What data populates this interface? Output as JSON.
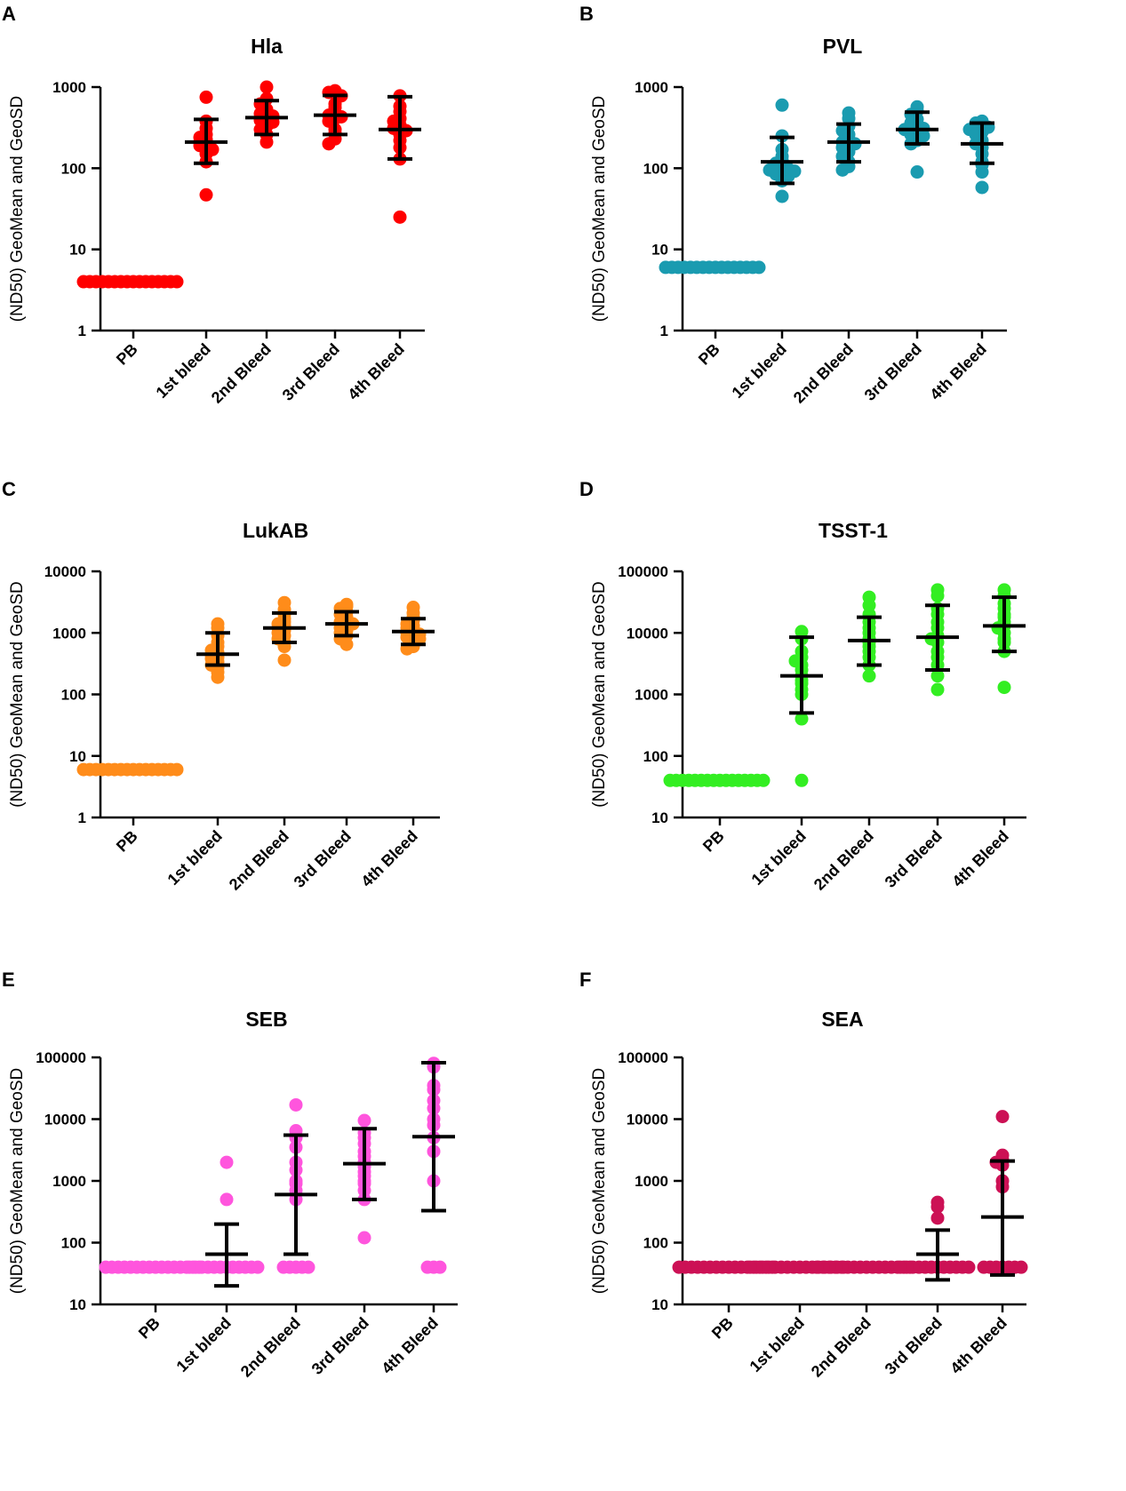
{
  "chart_data": [
    {
      "panel": "A",
      "title": "Hla",
      "type": "scatter",
      "ylabel": "(ND50) GeoMean and GeoSD",
      "yscale": "log",
      "ylim": [
        1,
        1000
      ],
      "yticks": [
        1,
        10,
        100,
        1000
      ],
      "color": "#ff0000",
      "categories": [
        "PB",
        "1st bleed",
        "2nd Bleed",
        "3rd Bleed",
        "4th Bleed"
      ],
      "series": [
        {
          "name": "PB",
          "values": [
            4,
            4,
            4,
            4,
            4,
            4,
            4,
            4,
            4,
            4,
            4,
            4,
            4,
            4,
            4,
            4
          ],
          "geomean": 4,
          "gsd_low": null,
          "gsd_high": null
        },
        {
          "name": "1st bleed",
          "values": [
            750,
            380,
            310,
            260,
            240,
            225,
            210,
            195,
            190,
            170,
            150,
            120,
            47
          ],
          "geomean": 210,
          "gsd_low": 115,
          "gsd_high": 400
        },
        {
          "name": "2nd Bleed",
          "values": [
            1000,
            720,
            620,
            530,
            500,
            470,
            440,
            410,
            390,
            370,
            330,
            300,
            260,
            210
          ],
          "geomean": 420,
          "gsd_low": 260,
          "gsd_high": 680
        },
        {
          "name": "3rd Bleed",
          "values": [
            900,
            860,
            780,
            620,
            560,
            480,
            450,
            430,
            410,
            380,
            300,
            270,
            230,
            200
          ],
          "geomean": 450,
          "gsd_low": 260,
          "gsd_high": 790
        },
        {
          "name": "4th Bleed",
          "values": [
            780,
            580,
            500,
            410,
            380,
            340,
            310,
            290,
            260,
            220,
            180,
            130,
            25
          ],
          "geomean": 300,
          "gsd_low": 130,
          "gsd_high": 760
        }
      ]
    },
    {
      "panel": "B",
      "title": "PVL",
      "type": "scatter",
      "ylabel": "(ND50) GeoMean and GeoSD",
      "yscale": "log",
      "ylim": [
        1,
        1000
      ],
      "yticks": [
        1,
        10,
        100,
        1000
      ],
      "color": "#1a9bb0",
      "categories": [
        "PB",
        "1st bleed",
        "2nd Bleed",
        "3rd Bleed",
        "4th Bleed"
      ],
      "series": [
        {
          "name": "PB",
          "values": [
            6,
            6,
            6,
            6,
            6,
            6,
            6,
            6,
            6,
            6,
            6,
            6,
            6,
            6,
            6,
            6
          ],
          "geomean": 6,
          "gsd_low": null,
          "gsd_high": null
        },
        {
          "name": "1st bleed",
          "values": [
            600,
            250,
            170,
            140,
            125,
            115,
            105,
            100,
            98,
            95,
            92,
            88,
            85,
            80,
            70,
            45
          ],
          "geomean": 120,
          "gsd_low": 65,
          "gsd_high": 240
        },
        {
          "name": "2nd Bleed",
          "values": [
            480,
            410,
            330,
            290,
            260,
            230,
            210,
            200,
            190,
            180,
            160,
            140,
            120,
            105,
            95
          ],
          "geomean": 210,
          "gsd_low": 120,
          "gsd_high": 350
        },
        {
          "name": "3rd Bleed",
          "values": [
            570,
            510,
            460,
            400,
            360,
            340,
            320,
            310,
            300,
            280,
            260,
            250,
            220,
            200,
            90
          ],
          "geomean": 300,
          "gsd_low": 200,
          "gsd_high": 490
        },
        {
          "name": "4th Bleed",
          "values": [
            380,
            360,
            340,
            330,
            320,
            300,
            280,
            260,
            220,
            200,
            180,
            150,
            120,
            110,
            90,
            58
          ],
          "geomean": 200,
          "gsd_low": 115,
          "gsd_high": 360
        }
      ]
    },
    {
      "panel": "C",
      "title": "LukAB",
      "type": "scatter",
      "ylabel": "(ND50) GeoMean and GeoSD",
      "yscale": "log",
      "ylim": [
        1,
        10000
      ],
      "yticks": [
        1,
        10,
        100,
        1000,
        10000
      ],
      "color": "#ff8c1a",
      "categories": [
        "PB",
        "1st bleed",
        "2nd Bleed",
        "3rd Bleed",
        "4th Bleed"
      ],
      "series": [
        {
          "name": "PB",
          "values": [
            6,
            6,
            6,
            6,
            6,
            6,
            6,
            6,
            6,
            6,
            6,
            6,
            6,
            6,
            6,
            6
          ],
          "geomean": 6,
          "gsd_low": null,
          "gsd_high": null
        },
        {
          "name": "1st bleed",
          "values": [
            1400,
            1200,
            900,
            700,
            600,
            520,
            480,
            440,
            400,
            380,
            340,
            300,
            270,
            230,
            190
          ],
          "geomean": 450,
          "gsd_low": 300,
          "gsd_high": 1000
        },
        {
          "name": "2nd Bleed",
          "values": [
            3100,
            2400,
            2000,
            1700,
            1500,
            1400,
            1300,
            1200,
            1100,
            1000,
            900,
            800,
            700,
            600,
            360
          ],
          "geomean": 1200,
          "gsd_low": 700,
          "gsd_high": 2100
        },
        {
          "name": "3rd Bleed",
          "values": [
            2900,
            2700,
            2500,
            2200,
            2000,
            1800,
            1600,
            1500,
            1400,
            1300,
            1200,
            1100,
            1000,
            900,
            800,
            650
          ],
          "geomean": 1400,
          "gsd_low": 900,
          "gsd_high": 2200
        },
        {
          "name": "4th Bleed",
          "values": [
            2600,
            2100,
            1800,
            1600,
            1400,
            1300,
            1200,
            1100,
            1000,
            950,
            900,
            850,
            800,
            700,
            600,
            550
          ],
          "geomean": 1050,
          "gsd_low": 650,
          "gsd_high": 1700
        }
      ]
    },
    {
      "panel": "D",
      "title": "TSST-1",
      "type": "scatter",
      "ylabel": "(ND50) GeoMean and GeoSD",
      "yscale": "log",
      "ylim": [
        10,
        100000
      ],
      "yticks": [
        10,
        100,
        1000,
        10000,
        100000
      ],
      "color": "#33ee22",
      "categories": [
        "PB",
        "1st bleed",
        "2nd Bleed",
        "3rd Bleed",
        "4th Bleed"
      ],
      "series": [
        {
          "name": "PB",
          "values": [
            40,
            40,
            40,
            40,
            40,
            40,
            40,
            40,
            40,
            40,
            40,
            40,
            40,
            40,
            40,
            40
          ],
          "geomean": 40,
          "gsd_low": null,
          "gsd_high": null
        },
        {
          "name": "1st bleed",
          "values": [
            10500,
            8000,
            5000,
            4000,
            3500,
            3000,
            2500,
            2000,
            1700,
            1500,
            1200,
            1000,
            400,
            40
          ],
          "geomean": 2000,
          "gsd_low": 500,
          "gsd_high": 8500
        },
        {
          "name": "2nd Bleed",
          "values": [
            38000,
            28000,
            20000,
            15000,
            12000,
            10000,
            8000,
            7000,
            6000,
            5000,
            4000,
            3000,
            2000
          ],
          "geomean": 7500,
          "gsd_low": 3000,
          "gsd_high": 18000
        },
        {
          "name": "3rd Bleed",
          "values": [
            50000,
            40000,
            25000,
            20000,
            15000,
            12000,
            9000,
            8000,
            7000,
            5000,
            4000,
            3000,
            2000,
            1200
          ],
          "geomean": 8500,
          "gsd_low": 2500,
          "gsd_high": 28000
        },
        {
          "name": "4th Bleed",
          "values": [
            50000,
            40000,
            30000,
            25000,
            20000,
            18000,
            15000,
            13000,
            12000,
            10000,
            8000,
            7000,
            5000,
            1300
          ],
          "geomean": 13000,
          "gsd_low": 5000,
          "gsd_high": 38000
        }
      ]
    },
    {
      "panel": "E",
      "title": "SEB",
      "type": "scatter",
      "ylabel": "(ND50) GeoMean and GeoSD",
      "yscale": "log",
      "ylim": [
        10,
        100000
      ],
      "yticks": [
        10,
        100,
        1000,
        10000,
        100000
      ],
      "color": "#ff55dd",
      "categories": [
        "PB",
        "1st bleed",
        "2nd Bleed",
        "3rd Bleed",
        "4th Bleed"
      ],
      "series": [
        {
          "name": "PB",
          "values": [
            40,
            40,
            40,
            40,
            40,
            40,
            40,
            40,
            40,
            40,
            40,
            40,
            40,
            40,
            40,
            40
          ],
          "geomean": 40,
          "gsd_low": null,
          "gsd_high": null
        },
        {
          "name": "1st bleed",
          "values": [
            2000,
            500,
            40,
            40,
            40,
            40,
            40,
            40,
            40,
            40,
            40,
            40,
            40,
            40
          ],
          "geomean": 65,
          "gsd_low": 20,
          "gsd_high": 200
        },
        {
          "name": "2nd Bleed",
          "values": [
            17000,
            6500,
            5000,
            3500,
            2000,
            1500,
            1000,
            900,
            700,
            500,
            40,
            40,
            40,
            40,
            40
          ],
          "geomean": 600,
          "gsd_low": 65,
          "gsd_high": 5500
        },
        {
          "name": "3rd Bleed",
          "values": [
            9500,
            6000,
            5000,
            4000,
            3000,
            2500,
            2000,
            1700,
            1400,
            1200,
            1000,
            900,
            700,
            500,
            120
          ],
          "geomean": 1900,
          "gsd_low": 500,
          "gsd_high": 7000
        },
        {
          "name": "4th Bleed",
          "values": [
            80000,
            70000,
            35000,
            30000,
            20000,
            15000,
            10000,
            8000,
            5000,
            3000,
            1000,
            40,
            40,
            40
          ],
          "geomean": 5200,
          "gsd_low": 330,
          "gsd_high": 82000
        }
      ]
    },
    {
      "panel": "F",
      "title": "SEA",
      "type": "scatter",
      "ylabel": "(ND50) GeoMean and GeoSD",
      "yscale": "log",
      "ylim": [
        10,
        100000
      ],
      "yticks": [
        10,
        100,
        1000,
        10000,
        100000
      ],
      "color": "#cc1155",
      "categories": [
        "PB",
        "1st bleed",
        "2nd Bleed",
        "3rd Bleed",
        "4th Bleed"
      ],
      "series": [
        {
          "name": "PB",
          "values": [
            40,
            40,
            40,
            40,
            40,
            40,
            40,
            40,
            40,
            40,
            40,
            40,
            40,
            40,
            40,
            40
          ],
          "geomean": 40,
          "gsd_low": null,
          "gsd_high": null
        },
        {
          "name": "1st bleed",
          "values": [
            40,
            40,
            40,
            40,
            40,
            40,
            40,
            40,
            40,
            40,
            40,
            40,
            40,
            40,
            40,
            40
          ],
          "geomean": 40,
          "gsd_low": null,
          "gsd_high": null
        },
        {
          "name": "2nd Bleed",
          "values": [
            40,
            40,
            40,
            40,
            40,
            40,
            40,
            40,
            40,
            40,
            40,
            40,
            40,
            40,
            40,
            40
          ],
          "geomean": 40,
          "gsd_low": null,
          "gsd_high": null
        },
        {
          "name": "3rd Bleed",
          "values": [
            450,
            380,
            250,
            40,
            40,
            40,
            40,
            40,
            40,
            40,
            40,
            40,
            40,
            40,
            40
          ],
          "geomean": 65,
          "gsd_low": 25,
          "gsd_high": 160
        },
        {
          "name": "4th Bleed",
          "values": [
            11000,
            2600,
            2200,
            2000,
            1800,
            1000,
            800,
            40,
            40,
            40,
            40,
            40,
            40,
            40
          ],
          "geomean": 260,
          "gsd_low": 30,
          "gsd_high": 2100
        }
      ]
    }
  ]
}
